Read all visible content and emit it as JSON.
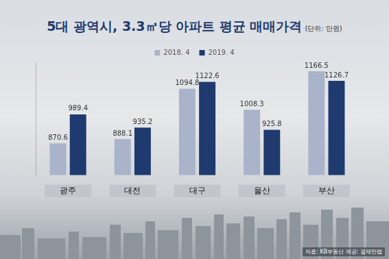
{
  "chart_data": {
    "type": "bar",
    "title": "5대 광역시, 3.3㎡당 아파트 평균 매매가격",
    "subtitle": "(단위: 만원)",
    "source": "자료: KB부동산 제공: 경제만랩",
    "categories": [
      "광주",
      "대전",
      "대구",
      "울산",
      "부산"
    ],
    "series": [
      {
        "name": "2018. 4",
        "color": "#a9b3c9",
        "values": [
          870.6,
          888.1,
          1094.8,
          1008.3,
          1166.5
        ]
      },
      {
        "name": "2019. 4",
        "color": "#1f3a6e",
        "values": [
          989.4,
          935.2,
          1122.6,
          925.8,
          1126.7
        ]
      }
    ],
    "ylim": [
      740,
      1200
    ],
    "tick_labels": "x",
    "grid": false,
    "legend": "top",
    "data_labels": true
  }
}
